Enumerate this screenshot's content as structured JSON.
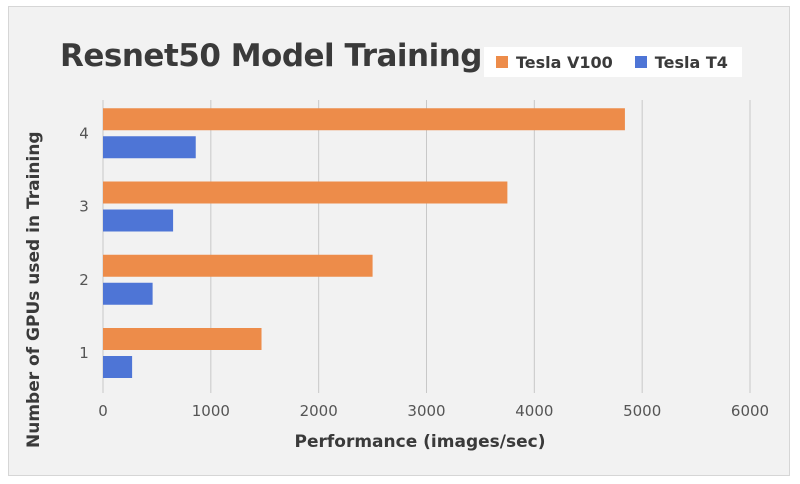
{
  "chart_data": {
    "type": "bar",
    "orientation": "horizontal",
    "title": "Resnet50 Model Training",
    "xlabel": "Performance (images/sec)",
    "ylabel": "Number of GPUs used in Training",
    "categories": [
      "1",
      "2",
      "3",
      "4"
    ],
    "series": [
      {
        "name": "Tesla V100",
        "color": "#ed8c4a",
        "values": [
          1470,
          2500,
          3750,
          4840
        ]
      },
      {
        "name": "Tesla T4",
        "color": "#4e75d6",
        "values": [
          270,
          460,
          650,
          860
        ]
      }
    ],
    "xlim": [
      0,
      6000
    ],
    "x_ticks": [
      "0",
      "1000",
      "2000",
      "3000",
      "4000",
      "5000",
      "6000"
    ],
    "grid": "vertical",
    "legend_position": "top-right"
  }
}
